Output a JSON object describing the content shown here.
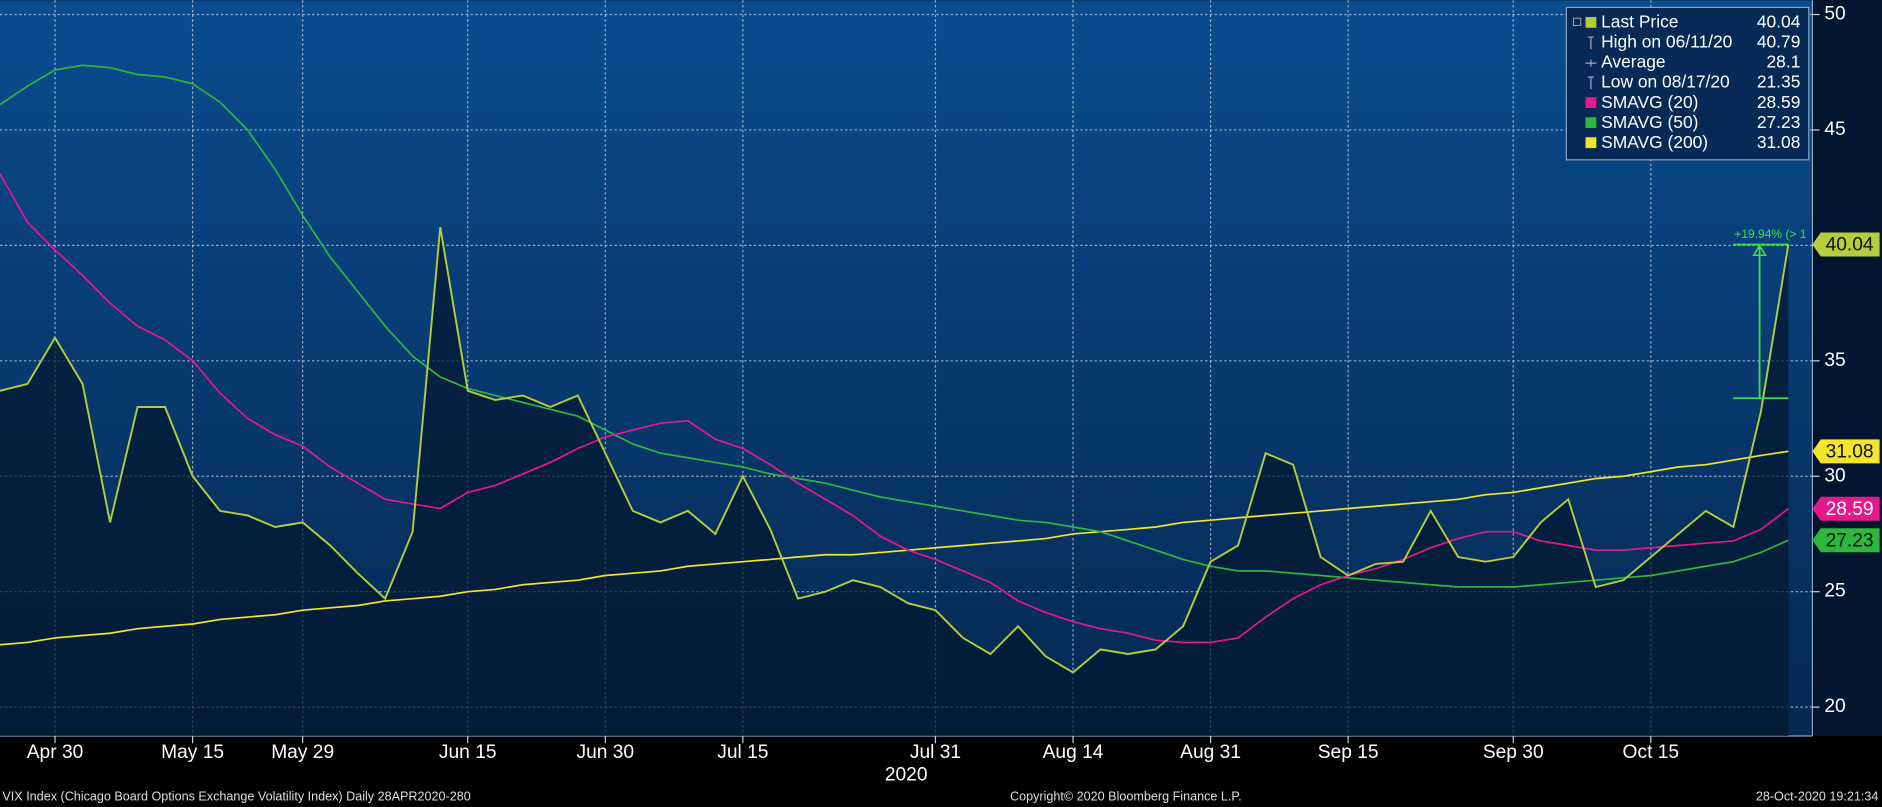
{
  "chart_data": {
    "type": "line",
    "categories": [
      null,
      null,
      "Apr 30",
      null,
      null,
      null,
      null,
      "May 15",
      null,
      null,
      null,
      "May 29",
      null,
      null,
      null,
      null,
      null,
      "Jun 15",
      null,
      null,
      null,
      null,
      "Jun 30",
      null,
      null,
      null,
      null,
      "Jul 15",
      null,
      null,
      null,
      null,
      null,
      null,
      "Jul 31",
      null,
      null,
      null,
      null,
      "Aug 14",
      null,
      null,
      null,
      null,
      "Aug 31",
      null,
      null,
      null,
      null,
      "Sep 15",
      null,
      null,
      null,
      null,
      null,
      "Sep 30",
      null,
      null,
      null,
      null,
      "Oct 15",
      null,
      null,
      null,
      null,
      null
    ],
    "x_axis_year": "2020",
    "series": [
      {
        "name": "Last Price",
        "color": "#b5cc3b",
        "area": true,
        "values": [
          33.7,
          34,
          36,
          34,
          28,
          33,
          33,
          30,
          28.5,
          28.3,
          27.8,
          28,
          27,
          25.8,
          24.7,
          27.6,
          40.79,
          33.7,
          33.3,
          33.5,
          33,
          33.5,
          31,
          28.5,
          28,
          28.5,
          27.5,
          30,
          27.7,
          24.7,
          25,
          25.5,
          25.2,
          24.5,
          24.2,
          23,
          22.3,
          23.5,
          22.2,
          21.5,
          22.5,
          22.3,
          22.5,
          23.5,
          26.3,
          27,
          31,
          30.5,
          26.5,
          25.7,
          26.2,
          26.3,
          28.5,
          26.5,
          26.3,
          26.5,
          28,
          29,
          25.2,
          25.5,
          26.5,
          27.5,
          28.5,
          27.8,
          32.8,
          40.04
        ]
      },
      {
        "name": "SMAVG (20)",
        "color": "#e6198c",
        "values": [
          43.1,
          41,
          39.8,
          38.7,
          37.5,
          36.5,
          35.9,
          35,
          33.6,
          32.5,
          31.8,
          31.3,
          30.4,
          29.7,
          29,
          28.8,
          28.6,
          29.3,
          29.6,
          30.1,
          30.6,
          31.2,
          31.7,
          32,
          32.3,
          32.4,
          31.6,
          31.2,
          30.5,
          29.7,
          29,
          28.3,
          27.4,
          26.8,
          26.4,
          25.9,
          25.4,
          24.6,
          24.1,
          23.7,
          23.4,
          23.2,
          22.9,
          22.8,
          22.8,
          23,
          23.9,
          24.7,
          25.3,
          25.7,
          26,
          26.4,
          26.9,
          27.3,
          27.6,
          27.6,
          27.2,
          27,
          26.8,
          26.8,
          26.9,
          27,
          27.1,
          27.2,
          27.7,
          28.59
        ]
      },
      {
        "name": "SMAVG (50)",
        "color": "#2db83d",
        "values": [
          46.1,
          46.9,
          47.6,
          47.8,
          47.7,
          47.4,
          47.3,
          47,
          46.2,
          45,
          43.3,
          41.3,
          39.5,
          38,
          36.5,
          35.2,
          34.3,
          33.8,
          33.5,
          33.2,
          32.9,
          32.6,
          32,
          31.4,
          31,
          30.8,
          30.6,
          30.4,
          30.1,
          29.9,
          29.7,
          29.4,
          29.1,
          28.9,
          28.7,
          28.5,
          28.3,
          28.1,
          28,
          27.8,
          27.6,
          27.2,
          26.8,
          26.4,
          26.1,
          25.9,
          25.9,
          25.8,
          25.7,
          25.6,
          25.5,
          25.4,
          25.3,
          25.2,
          25.2,
          25.2,
          25.3,
          25.4,
          25.5,
          25.6,
          25.7,
          25.9,
          26.1,
          26.3,
          26.7,
          27.23
        ]
      },
      {
        "name": "SMAVG (200)",
        "color": "#f2e52a",
        "values": [
          22.7,
          22.8,
          23,
          23.1,
          23.2,
          23.4,
          23.5,
          23.6,
          23.8,
          23.9,
          24,
          24.2,
          24.3,
          24.4,
          24.6,
          24.7,
          24.8,
          25,
          25.1,
          25.3,
          25.4,
          25.5,
          25.7,
          25.8,
          25.9,
          26.1,
          26.2,
          26.3,
          26.4,
          26.5,
          26.6,
          26.6,
          26.7,
          26.8,
          26.9,
          27,
          27.1,
          27.2,
          27.3,
          27.5,
          27.6,
          27.7,
          27.8,
          28,
          28.1,
          28.2,
          28.3,
          28.4,
          28.5,
          28.6,
          28.7,
          28.8,
          28.9,
          29,
          29.2,
          29.3,
          29.5,
          29.7,
          29.9,
          30,
          30.2,
          30.4,
          30.5,
          30.7,
          30.9,
          31.08
        ]
      }
    ],
    "stats": [
      {
        "name": "High on 06/11/20",
        "value": 40.79
      },
      {
        "name": "Average",
        "value": 28.1
      },
      {
        "name": "Low on 08/17/20",
        "value": 21.35
      }
    ],
    "annotation": {
      "text": "+19.94% (> 1",
      "from": 33.38,
      "to": 40.04
    },
    "ylim": [
      18.75,
      50.62
    ],
    "yticks": [
      20,
      25,
      30,
      35,
      40,
      45,
      50
    ],
    "grid": true,
    "legend": "top-right",
    "footer": {
      "left": "VIX Index (Chicago Board Options Exchange Volatility Index)  Daily 28APR2020-280",
      "center": "Copyright© 2020 Bloomberg Finance L.P.",
      "right": "28-Oct-2020 19:21:34"
    }
  }
}
